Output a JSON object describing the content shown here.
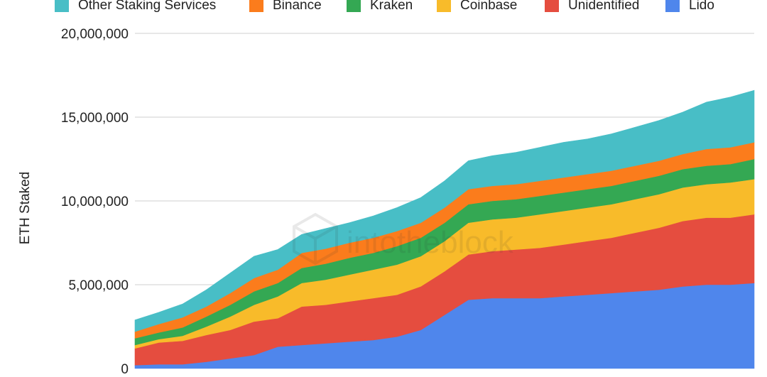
{
  "chart_data": {
    "type": "area",
    "stacked": true,
    "title": "",
    "xlabel": "",
    "ylabel": "ETH Staked",
    "ylim": [
      0,
      20000000
    ],
    "yticks": [
      "0",
      "5,000,000",
      "10,000,000",
      "15,000,000",
      "20,000,000"
    ],
    "grid": true,
    "legend_position": "top",
    "x": [
      1,
      2,
      3,
      4,
      5,
      6,
      7,
      8,
      9,
      10,
      11,
      12,
      13,
      14,
      15,
      16,
      17,
      18,
      19,
      20,
      21,
      22,
      23,
      24,
      25,
      26,
      27
    ],
    "series": [
      {
        "name": "Lido",
        "color": "#4f86ec",
        "values": [
          200000,
          250000,
          250000,
          400000,
          600000,
          800000,
          1300000,
          1400000,
          1500000,
          1600000,
          1700000,
          1900000,
          2300000,
          3200000,
          4100000,
          4200000,
          4200000,
          4200000,
          4300000,
          4400000,
          4500000,
          4600000,
          4700000,
          4900000,
          5000000,
          5000000,
          5100000
        ]
      },
      {
        "name": "Unidentified",
        "color": "#e54d3f",
        "values": [
          1000000,
          1300000,
          1400000,
          1600000,
          1700000,
          2000000,
          1700000,
          2300000,
          2300000,
          2400000,
          2500000,
          2500000,
          2600000,
          2600000,
          2700000,
          2800000,
          2900000,
          3000000,
          3100000,
          3200000,
          3300000,
          3500000,
          3700000,
          3900000,
          4000000,
          4000000,
          4100000
        ]
      },
      {
        "name": "Coinbase",
        "color": "#f8bb2a",
        "values": [
          200000,
          200000,
          300000,
          500000,
          800000,
          1000000,
          1300000,
          1400000,
          1500000,
          1600000,
          1700000,
          1800000,
          1800000,
          1800000,
          1900000,
          1900000,
          1900000,
          2000000,
          2000000,
          2000000,
          2000000,
          2000000,
          2000000,
          2000000,
          2000000,
          2100000,
          2100000
        ]
      },
      {
        "name": "Kraken",
        "color": "#34a853",
        "values": [
          400000,
          400000,
          500000,
          600000,
          700000,
          800000,
          800000,
          900000,
          950000,
          1000000,
          1000000,
          1100000,
          1100000,
          1100000,
          1100000,
          1100000,
          1100000,
          1100000,
          1100000,
          1100000,
          1100000,
          1100000,
          1100000,
          1100000,
          1100000,
          1100000,
          1200000
        ]
      },
      {
        "name": "Binance",
        "color": "#fb7c1c",
        "values": [
          400000,
          500000,
          600000,
          600000,
          700000,
          800000,
          800000,
          900000,
          900000,
          900000,
          900000,
          900000,
          900000,
          900000,
          900000,
          900000,
          900000,
          900000,
          900000,
          900000,
          900000,
          900000,
          900000,
          900000,
          1000000,
          1000000,
          1000000
        ]
      },
      {
        "name": "Other Staking Services",
        "color": "#48bec6",
        "values": [
          700000,
          700000,
          800000,
          1000000,
          1200000,
          1300000,
          1200000,
          1100000,
          1200000,
          1200000,
          1300000,
          1400000,
          1500000,
          1600000,
          1700000,
          1800000,
          1900000,
          2000000,
          2100000,
          2100000,
          2200000,
          2300000,
          2400000,
          2500000,
          2800000,
          3000000,
          3100000
        ]
      }
    ],
    "legend_order": [
      "Other Staking Services",
      "Binance",
      "Kraken",
      "Coinbase",
      "Unidentified",
      "Lido"
    ],
    "watermark": "intotheblock"
  }
}
